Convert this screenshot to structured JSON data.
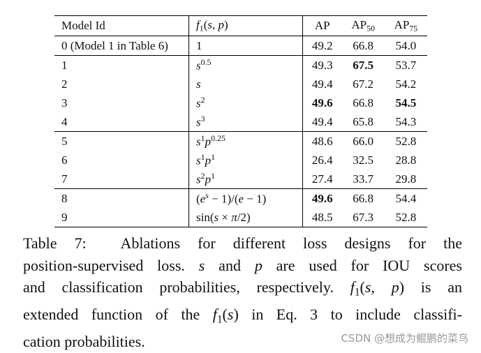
{
  "table": {
    "header": [
      "Model Id",
      [
        {
          "text": "f",
          "style": "it"
        },
        {
          "text": "1",
          "style": "sub"
        },
        {
          "text": "("
        },
        {
          "text": "s",
          "style": "it"
        },
        {
          "text": ", "
        },
        {
          "text": "p",
          "style": "it"
        },
        {
          "text": ")"
        }
      ],
      "AP",
      [
        {
          "text": "AP"
        },
        {
          "text": "50",
          "style": "sub"
        }
      ],
      [
        {
          "text": "AP"
        },
        {
          "text": "75",
          "style": "sub"
        }
      ]
    ],
    "groups": [
      [
        {
          "cells": [
            "0 (Model 1 in Table 6)",
            "1",
            "49.2",
            "66.8",
            "54.0"
          ],
          "bold": []
        }
      ],
      [
        {
          "cells": [
            "1",
            [
              {
                "text": "s",
                "style": "it"
              },
              {
                "text": "0.5",
                "style": "sup"
              }
            ],
            "49.3",
            "67.5",
            "53.7"
          ],
          "bold": [
            3
          ]
        },
        {
          "cells": [
            "2",
            [
              {
                "text": "s",
                "style": "it"
              }
            ],
            "49.4",
            "67.2",
            "54.2"
          ],
          "bold": []
        },
        {
          "cells": [
            "3",
            [
              {
                "text": "s",
                "style": "it"
              },
              {
                "text": "2",
                "style": "sup"
              }
            ],
            "49.6",
            "66.8",
            "54.5"
          ],
          "bold": [
            2,
            4
          ]
        },
        {
          "cells": [
            "4",
            [
              {
                "text": "s",
                "style": "it"
              },
              {
                "text": "3",
                "style": "sup"
              }
            ],
            "49.4",
            "65.8",
            "54.3"
          ],
          "bold": []
        }
      ],
      [
        {
          "cells": [
            "5",
            [
              {
                "text": "s",
                "style": "it"
              },
              {
                "text": "1",
                "style": "sup"
              },
              {
                "text": "p",
                "style": "it"
              },
              {
                "text": "0.25",
                "style": "sup"
              }
            ],
            "48.6",
            "66.0",
            "52.8"
          ],
          "bold": []
        },
        {
          "cells": [
            "6",
            [
              {
                "text": "s",
                "style": "it"
              },
              {
                "text": "1",
                "style": "sup"
              },
              {
                "text": "p",
                "style": "it"
              },
              {
                "text": "1",
                "style": "sup"
              }
            ],
            "26.4",
            "32.5",
            "28.8"
          ],
          "bold": []
        },
        {
          "cells": [
            "7",
            [
              {
                "text": "s",
                "style": "it"
              },
              {
                "text": "2",
                "style": "sup"
              },
              {
                "text": "p",
                "style": "it"
              },
              {
                "text": "1",
                "style": "sup"
              }
            ],
            "27.4",
            "33.7",
            "29.8"
          ],
          "bold": []
        }
      ],
      [
        {
          "cells": [
            "8",
            [
              {
                "text": "("
              },
              {
                "text": "e",
                "style": "it"
              },
              {
                "text": "s",
                "style": "sup-it"
              },
              {
                "text": " − 1)/("
              },
              {
                "text": "e",
                "style": "it"
              },
              {
                "text": " − 1)"
              }
            ],
            "49.6",
            "66.8",
            "54.4"
          ],
          "bold": [
            2
          ]
        },
        {
          "cells": [
            "9",
            [
              {
                "text": "sin("
              },
              {
                "text": "s",
                "style": "it"
              },
              {
                "text": " × "
              },
              {
                "text": "π",
                "style": "it"
              },
              {
                "text": "/2)"
              }
            ],
            "48.5",
            "67.3",
            "52.8"
          ],
          "bold": []
        }
      ]
    ]
  },
  "caption": {
    "lines": [
      [
        {
          "text": "Table 7:  Ablations for different loss designs for the"
        }
      ],
      [
        {
          "text": "position-supervised loss. "
        },
        {
          "text": "s",
          "style": "it"
        },
        {
          "text": " and "
        },
        {
          "text": "p",
          "style": "it"
        },
        {
          "text": " are used for IOU scores"
        }
      ],
      [
        {
          "text": "and classification probabilities, respectively. "
        },
        {
          "text": "f",
          "style": "it"
        },
        {
          "text": "1",
          "style": "sub"
        },
        {
          "text": "("
        },
        {
          "text": "s",
          "style": "it"
        },
        {
          "text": ", "
        },
        {
          "text": "p",
          "style": "it"
        },
        {
          "text": ")"
        },
        {
          "text": " is an"
        }
      ],
      [
        {
          "text": "extended function of the "
        },
        {
          "text": "f",
          "style": "it"
        },
        {
          "text": "1",
          "style": "sub"
        },
        {
          "text": "("
        },
        {
          "text": "s",
          "style": "it"
        },
        {
          "text": ")"
        },
        {
          "text": " in Eq. 3 to include classifi-"
        }
      ],
      [
        {
          "text": "cation probabilities."
        }
      ]
    ]
  },
  "watermark": "CSDN @想成为鲲鹏的菜鸟"
}
